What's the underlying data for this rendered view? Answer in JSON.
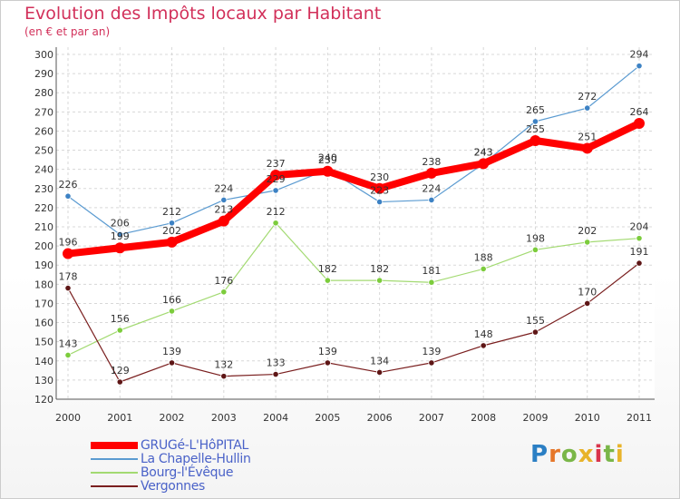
{
  "logo_text": "Proxiti",
  "chart_data": {
    "type": "line",
    "title": "Evolution des Impôts locaux par Habitant",
    "subtitle": "(en € et par an)",
    "xlabel": "",
    "ylabel": "",
    "ylim": [
      120,
      300
    ],
    "ytick_step": 10,
    "grid": true,
    "legend_position": "bottom-left",
    "categories": [
      "2000",
      "2001",
      "2002",
      "2003",
      "2004",
      "2005",
      "2006",
      "2007",
      "2008",
      "2009",
      "2010",
      "2011"
    ],
    "series": [
      {
        "name": "GRUGé-L'HôPITAL",
        "color": "#ff0000",
        "values": [
          196,
          199,
          202,
          213,
          237,
          239,
          230,
          238,
          243,
          255,
          251,
          264
        ]
      },
      {
        "name": "La Chapelle-Hullin",
        "color": "#5b9bd1",
        "values": [
          226,
          206,
          212,
          224,
          229,
          240,
          223,
          224,
          243,
          265,
          272,
          294
        ]
      },
      {
        "name": "Bourg-l'Évêque",
        "color": "#a3da72",
        "values": [
          143,
          156,
          166,
          176,
          212,
          182,
          182,
          181,
          188,
          198,
          202,
          204
        ]
      },
      {
        "name": "Vergonnes",
        "color": "#7a1f1f",
        "values": [
          178,
          129,
          139,
          132,
          133,
          139,
          134,
          139,
          148,
          155,
          170,
          191
        ]
      }
    ]
  }
}
